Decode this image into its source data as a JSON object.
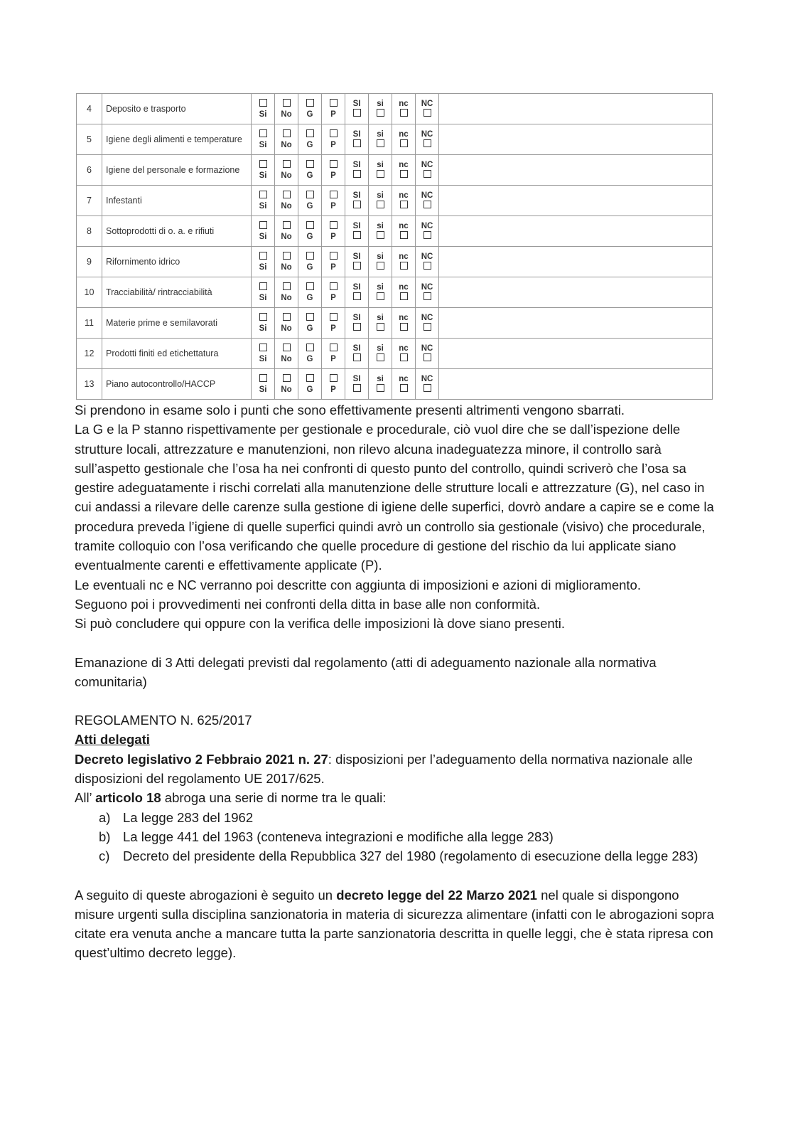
{
  "table": {
    "marks": [
      "Si",
      "No",
      "G",
      "P",
      "SI",
      "si",
      "nc",
      "NC"
    ],
    "rows": [
      {
        "num": "4",
        "label": "Deposito e trasporto"
      },
      {
        "num": "5",
        "label": "Igiene degli alimenti e temperature"
      },
      {
        "num": "6",
        "label": "Igiene del personale e formazione"
      },
      {
        "num": "7",
        "label": "Infestanti"
      },
      {
        "num": "8",
        "label": "Sottoprodotti di o. a. e rifiuti"
      },
      {
        "num": "9",
        "label": "Rifornimento idrico"
      },
      {
        "num": "10",
        "label": "Tracciabilità/ rintracciabilità"
      },
      {
        "num": "11",
        "label": "Materie prime e semilavorati"
      },
      {
        "num": "12",
        "label": "Prodotti finiti ed etichettatura"
      },
      {
        "num": "13",
        "label": "Piano autocontrollo/HACCP"
      }
    ]
  },
  "notes": [
    "Si prendono in esame solo i punti che sono effettivamente presenti altrimenti vengono sbarrati.",
    "La G e la P stanno rispettivamente per gestionale e procedurale, ciò vuol dire che se dall’ispezione delle strutture locali, attrezzature e manutenzioni, non rilevo alcuna inadeguatezza minore, il controllo sarà sull’aspetto gestionale che l’osa ha nei confronti di questo punto del controllo, quindi scriverò che l’osa sa gestire adeguatamente i rischi correlati alla manutenzione delle strutture locali e attrezzature (G), nel caso in cui andassi a rilevare delle carenze sulla gestione di igiene delle superfici, dovrò andare a capire se e come la procedura preveda l’igiene di quelle superfici quindi avrò un controllo sia gestionale (visivo) che procedurale, tramite colloquio con l’osa verificando che quelle procedure di gestione del rischio da lui applicate siano eventualmente carenti e effettivamente applicate (P).",
    "Le eventuali nc e NC verranno poi descritte con aggiunta di imposizioni e azioni di miglioramento.",
    "Seguono poi i provvedimenti nei confronti della ditta in base alle non conformità.",
    "Si può concludere qui oppure con la verifica delle imposizioni là dove siano presenti."
  ],
  "delegated": "Emanazione di 3 Atti delegati previsti dal regolamento (atti di adeguamento nazionale alla normativa comunitaria)",
  "regulation": "REGOLAMENTO N. 625/2017",
  "heading": "Atti delegati",
  "decree": {
    "bold": "Decreto legislativo 2 Febbraio 2021 n. 27",
    "text": ": disposizioni per l’adeguamento della normativa nazionale alle disposizioni del regolamento UE 2017/625."
  },
  "article": {
    "before": "All’ ",
    "bold": "articolo 18",
    "after": " abroga una serie di norme tra le quali:"
  },
  "list": [
    {
      "marker": "a)",
      "text": "La legge 283 del 1962"
    },
    {
      "marker": "b)",
      "text": "La legge 441 del 1963 (conteneva integrazioni e modifiche alla legge 283)"
    },
    {
      "marker": "c)",
      "text": "Decreto del presidente della Repubblica 327 del 1980 (regolamento di esecuzione della legge 283)"
    }
  ],
  "final": {
    "before": "A seguito di queste abrogazioni è seguito un ",
    "bold": "decreto legge del 22 Marzo 2021",
    "after": " nel quale si dispongono misure urgenti sulla disciplina sanzionatoria in materia di sicurezza alimentare (infatti con le abrogazioni sopra citate era venuta anche a mancare tutta la parte sanzionatoria descritta in quelle leggi, che è stata ripresa con quest’ultimo decreto legge)."
  }
}
